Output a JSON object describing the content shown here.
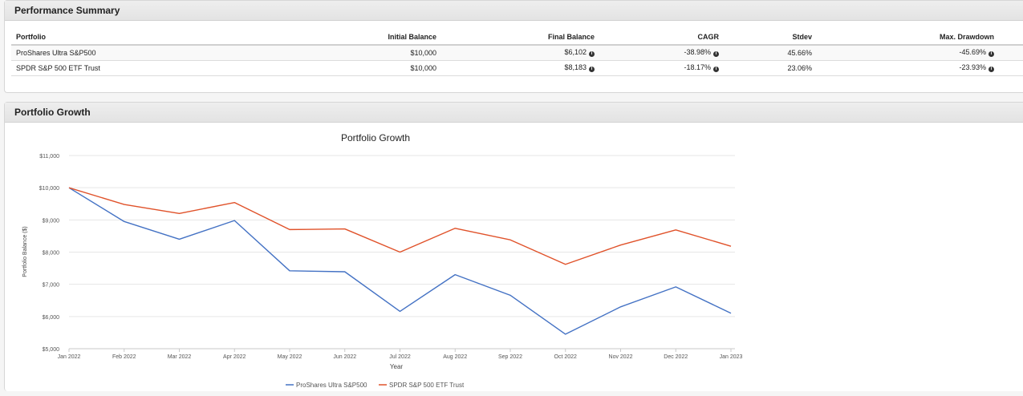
{
  "summary": {
    "title": "Performance Summary",
    "headers": [
      "Portfolio",
      "Initial Balance",
      "Final Balance",
      "CAGR",
      "Stdev",
      "Max. Drawdown"
    ],
    "rows": [
      {
        "portfolio": "ProShares Ultra S&P500",
        "initial": "$10,000",
        "final": "$6,102",
        "cagr": "-38.98%",
        "stdev": "45.66%",
        "drawdown": "-45.69%"
      },
      {
        "portfolio": "SPDR S&P 500 ETF Trust",
        "initial": "$10,000",
        "final": "$8,183",
        "cagr": "-18.17%",
        "stdev": "23.06%",
        "drawdown": "-23.93%"
      }
    ]
  },
  "growth": {
    "title": "Portfolio Growth"
  },
  "chart_data": {
    "type": "line",
    "title": "Portfolio Growth",
    "xlabel": "Year",
    "ylabel": "Portfolio Balance ($)",
    "categories": [
      "Jan 2022",
      "Feb 2022",
      "Mar 2022",
      "Apr 2022",
      "May 2022",
      "Jun 2022",
      "Jul 2022",
      "Aug 2022",
      "Sep 2022",
      "Oct 2022",
      "Nov 2022",
      "Dec 2022",
      "Jan 2023"
    ],
    "y_ticks": [
      "$5,000",
      "$6,000",
      "$7,000",
      "$8,000",
      "$9,000",
      "$10,000",
      "$11,000"
    ],
    "y_tick_values": [
      5000,
      6000,
      7000,
      8000,
      9000,
      10000,
      11000
    ],
    "ylim": [
      5000,
      11000
    ],
    "grid": true,
    "legend_position": "bottom",
    "series": [
      {
        "name": "ProShares Ultra S&P500",
        "color": "#4472c4",
        "values": [
          10000,
          8950,
          8400,
          8980,
          7420,
          7390,
          6160,
          7300,
          6660,
          5450,
          6300,
          6920,
          6102
        ]
      },
      {
        "name": "SPDR S&P 500 ETF Trust",
        "color": "#e0522a",
        "values": [
          10000,
          9480,
          9200,
          9540,
          8700,
          8720,
          8000,
          8740,
          8380,
          7620,
          8220,
          8690,
          8183
        ]
      }
    ]
  }
}
